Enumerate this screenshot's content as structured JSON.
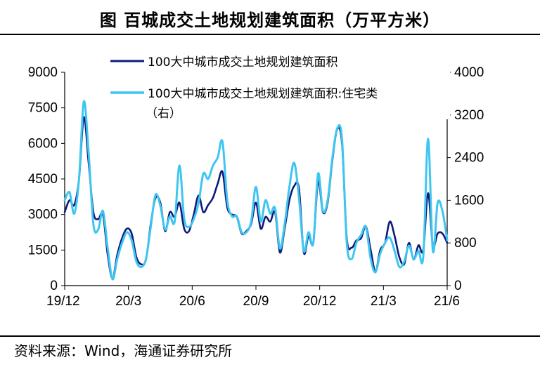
{
  "header": {
    "title": "图 百城成交土地规划建筑面积（万平方米）"
  },
  "footer": {
    "source": "资料来源：Wind，海通证券研究所"
  },
  "chart_data": {
    "type": "line",
    "x_tick_labels": [
      "19/12",
      "20/3",
      "20/6",
      "20/9",
      "20/12",
      "21/3",
      "21/6"
    ],
    "y_left": {
      "ticks": [
        0,
        1500,
        3000,
        4500,
        6000,
        7500,
        9000
      ],
      "ylim": [
        0,
        9000
      ]
    },
    "y_right": {
      "ticks": [
        0,
        800,
        1600,
        2400,
        3200,
        4000
      ],
      "ylim": [
        0,
        4000
      ]
    },
    "x_range": [
      0,
      80
    ],
    "legend": [
      {
        "label": "100大中城市成交土地规划建筑面积",
        "color": "#0d1a7a"
      },
      {
        "label": "100大中城市成交土地规划建筑面积:住宅类",
        "label2": "（右）",
        "color": "#3ec6f0"
      }
    ],
    "series": [
      {
        "name": "100大中城市成交土地规划建筑面积",
        "axis": "left",
        "color": "#0d1a7a",
        "values": [
          3100,
          3600,
          3400,
          4500,
          7100,
          5200,
          3100,
          2800,
          3000,
          1300,
          300,
          1300,
          2000,
          2400,
          2200,
          1200,
          900,
          1100,
          2600,
          3700,
          3500,
          2300,
          3100,
          2900,
          3500,
          2400,
          2300,
          3000,
          3800,
          3100,
          3400,
          3700,
          4300,
          4800,
          3300,
          3000,
          2900,
          2200,
          2300,
          2600,
          3500,
          2400,
          2900,
          2700,
          3100,
          1400,
          2400,
          3600,
          4200,
          4100,
          1400,
          2100,
          1800,
          4400,
          3100,
          3500,
          5300,
          6600,
          6000,
          2000,
          1600,
          1900,
          2000,
          2500,
          1500,
          600,
          1500,
          1800,
          2700,
          2100,
          1200,
          900,
          1800,
          1100,
          1700,
          1500,
          3900,
          1700,
          2200,
          2200,
          1800
        ]
      },
      {
        "name": "100大中城市成交土地规划建筑面积:住宅类",
        "axis": "right",
        "color": "#3ec6f0",
        "values": [
          1600,
          1750,
          1350,
          2000,
          3450,
          2500,
          1150,
          1050,
          1400,
          700,
          120,
          500,
          800,
          1000,
          850,
          450,
          350,
          500,
          1100,
          1700,
          1500,
          1050,
          1300,
          1200,
          2250,
          1250,
          1100,
          1250,
          1550,
          2100,
          2000,
          2250,
          2400,
          2700,
          1600,
          1300,
          1300,
          1000,
          1000,
          1200,
          1850,
          1200,
          1600,
          1350,
          1450,
          700,
          1150,
          1850,
          2300,
          1650,
          650,
          1000,
          800,
          2100,
          1400,
          1600,
          2400,
          2950,
          2750,
          800,
          500,
          800,
          950,
          1100,
          500,
          250,
          600,
          800,
          900,
          650,
          350,
          450,
          750,
          500,
          650,
          550,
          2750,
          650,
          1550,
          1400,
          850
        ]
      }
    ]
  }
}
